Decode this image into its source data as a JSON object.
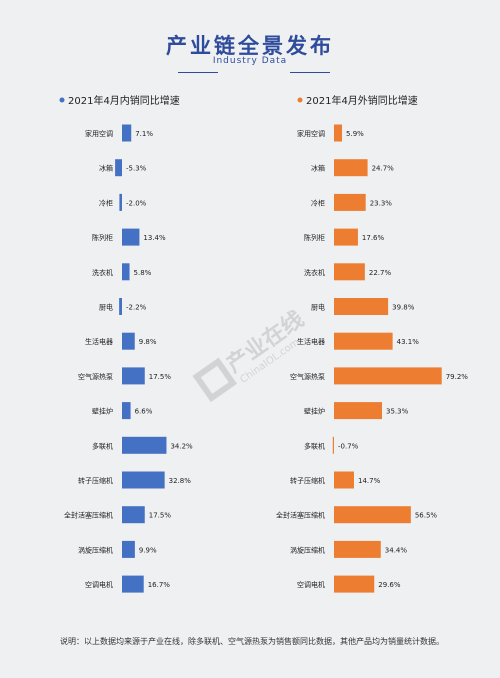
{
  "header": {
    "title": "产业链全景发布",
    "subtitle": "Industry Data"
  },
  "note": "说明：以上数据均来源于产业在线，除多联机、空气源热泵为销售额同比数据，其他产品均为销量统计数据。",
  "watermark": {
    "text": "产业在线",
    "sub": "ChinaIOL.com"
  },
  "chart_data": [
    {
      "type": "bar",
      "orientation": "horizontal",
      "title": "2021年4月内销同比增速",
      "color": "#4471c4",
      "categories": [
        "家用空调",
        "冰箱",
        "冷柜",
        "陈列柜",
        "洗衣机",
        "厨电",
        "生活电器",
        "空气源热泵",
        "壁挂炉",
        "多联机",
        "转子压缩机",
        "全封活塞压缩机",
        "涡旋压缩机",
        "空调电机"
      ],
      "values": [
        7.1,
        -5.3,
        -2.0,
        13.4,
        5.8,
        -2.2,
        9.8,
        17.5,
        6.6,
        34.2,
        32.8,
        17.5,
        9.9,
        16.7
      ],
      "labels": [
        "7.1%",
        "-5.3%",
        "-2.0%",
        "13.4%",
        "5.8%",
        "-2.2%",
        "9.8%",
        "17.5%",
        "6.6%",
        "34.2%",
        "32.8%",
        "17.5%",
        "9.9%",
        "16.7%"
      ]
    },
    {
      "type": "bar",
      "orientation": "horizontal",
      "title": "2021年4月外销同比增速",
      "color": "#ed7d31",
      "categories": [
        "家用空调",
        "冰箱",
        "冷柜",
        "陈列柜",
        "洗衣机",
        "厨电",
        "生活电器",
        "空气源热泵",
        "壁挂炉",
        "多联机",
        "转子压缩机",
        "全封活塞压缩机",
        "涡旋压缩机",
        "空调电机"
      ],
      "values": [
        5.9,
        24.7,
        23.3,
        17.6,
        22.7,
        39.8,
        43.1,
        79.2,
        35.3,
        -0.7,
        14.7,
        56.5,
        34.4,
        29.6
      ],
      "labels": [
        "5.9%",
        "24.7%",
        "23.3%",
        "17.6%",
        "22.7%",
        "39.8%",
        "43.1%",
        "79.2%",
        "35.3%",
        "-0.7%",
        "14.7%",
        "56.5%",
        "34.4%",
        "29.6%"
      ]
    }
  ]
}
